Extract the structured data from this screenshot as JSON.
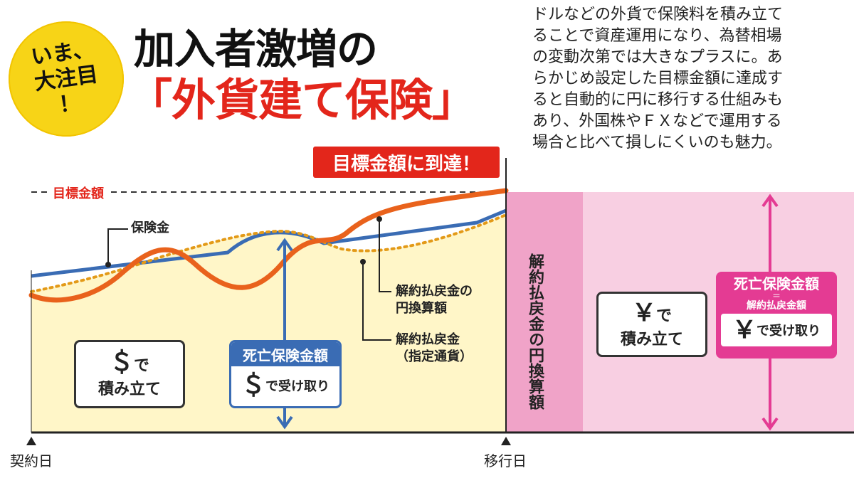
{
  "badge": {
    "lines": [
      "いま、",
      "大注目",
      "！"
    ]
  },
  "headline": {
    "line1": "加入者激増の",
    "line2": "「外貨建て保険」"
  },
  "body_text": [
    "ドルなどの外貨で保険料を積み立て",
    "ることで資産運用になり、為替相場",
    "の変動次第では大きなプラスに。あ",
    "らかじめ設定した目標金額に達成す",
    "ると自動的に円に移行する仕組みも",
    "あり、外国株やＦＸなどで運用する",
    "場合と比べて損しにくいのも魅力。"
  ],
  "diagram": {
    "target_flag": "目標金額に到達！",
    "target_label": "目標金額",
    "insurance_label": "保険金",
    "refund_yen_label": [
      "解約払戻金の",
      "円換算額"
    ],
    "refund_fx_label": [
      "解約払戻金",
      "（指定通貨）"
    ],
    "dollar_box": {
      "symbol": "＄",
      "suffix": "で",
      "line2": "積み立て"
    },
    "death_dollar": {
      "head": "死亡保険金額",
      "symbol": "＄",
      "text": "で受け取り"
    },
    "vertical_label": "解約払戻金の円換算額",
    "yen_box": {
      "symbol": "￥",
      "suffix": "で",
      "line2": "積み立て"
    },
    "death_yen": {
      "head": "死亡保険金額",
      "eq": "＝",
      "sub": "解約払戻金額",
      "symbol": "￥",
      "text": "で受け取り"
    },
    "start_label": "契約日",
    "switch_label": "移行日"
  },
  "colors": {
    "accent_red": "#e3261b",
    "curve_orange": "#e9621c",
    "line_blue": "#3a6cb4",
    "fill_yellow": "#fff6c8",
    "pink_dark": "#f0a3c8",
    "pink_light": "#f8cfe2",
    "pink_accent": "#e43b93",
    "badge_yellow": "#f7d417"
  }
}
